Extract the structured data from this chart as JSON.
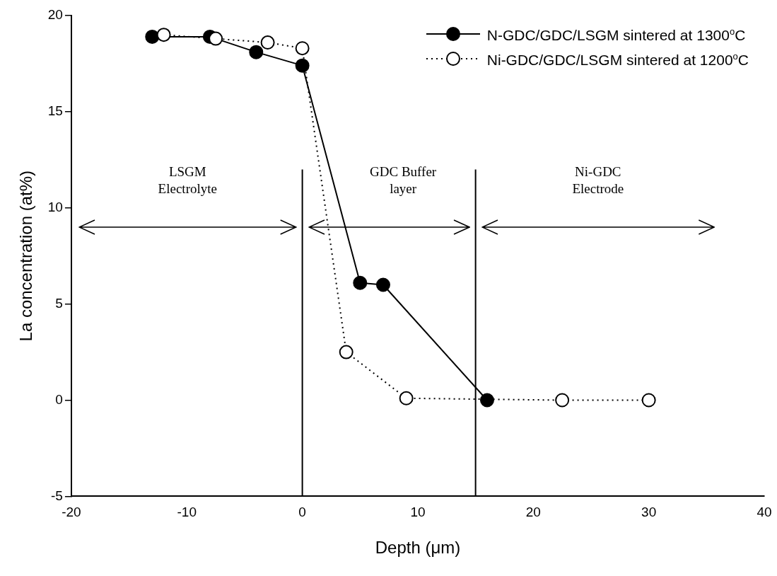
{
  "chart_data": {
    "type": "line",
    "xlabel": "Depth (μm)",
    "ylabel": "La concentration (at%)",
    "xlim": [
      -20,
      40
    ],
    "xticks": [
      -20,
      -10,
      0,
      10,
      20,
      30,
      40
    ],
    "ylim": [
      -5,
      20
    ],
    "yticks": [
      -5,
      0,
      5,
      10,
      15,
      20
    ],
    "grid": false,
    "legend": "top right",
    "marker": "circle",
    "series": [
      {
        "name": "N-GDC/GDC/LSGM sintered at 1300$^{o}$C",
        "color": "#000000",
        "line_style": "solid",
        "x": [
          -13,
          -8,
          -4,
          0,
          5,
          7,
          16
        ],
        "values": [
          18.9,
          18.9,
          18.1,
          17.4,
          6.1,
          6.0,
          0
        ]
      },
      {
        "name": "Ni-GDC/GDC/LSGM sintered at 1200$^{o}$C",
        "color": "#ffffff",
        "line_style": "dotted",
        "x": [
          -12,
          -7.5,
          -3,
          0,
          3.8,
          9,
          22.5,
          30
        ],
        "values": [
          19.0,
          18.8,
          18.6,
          18.3,
          2.5,
          0.1,
          0,
          0
        ]
      }
    ],
    "ref_lines": [
      {
        "axis": "x",
        "value": 0
      },
      {
        "axis": "x",
        "value": 15
      }
    ],
    "annotations": [
      "LSGM\nElectrolyte",
      "GDC Buffer\nlayer",
      "Ni-GDC\nElectrode"
    ]
  }
}
